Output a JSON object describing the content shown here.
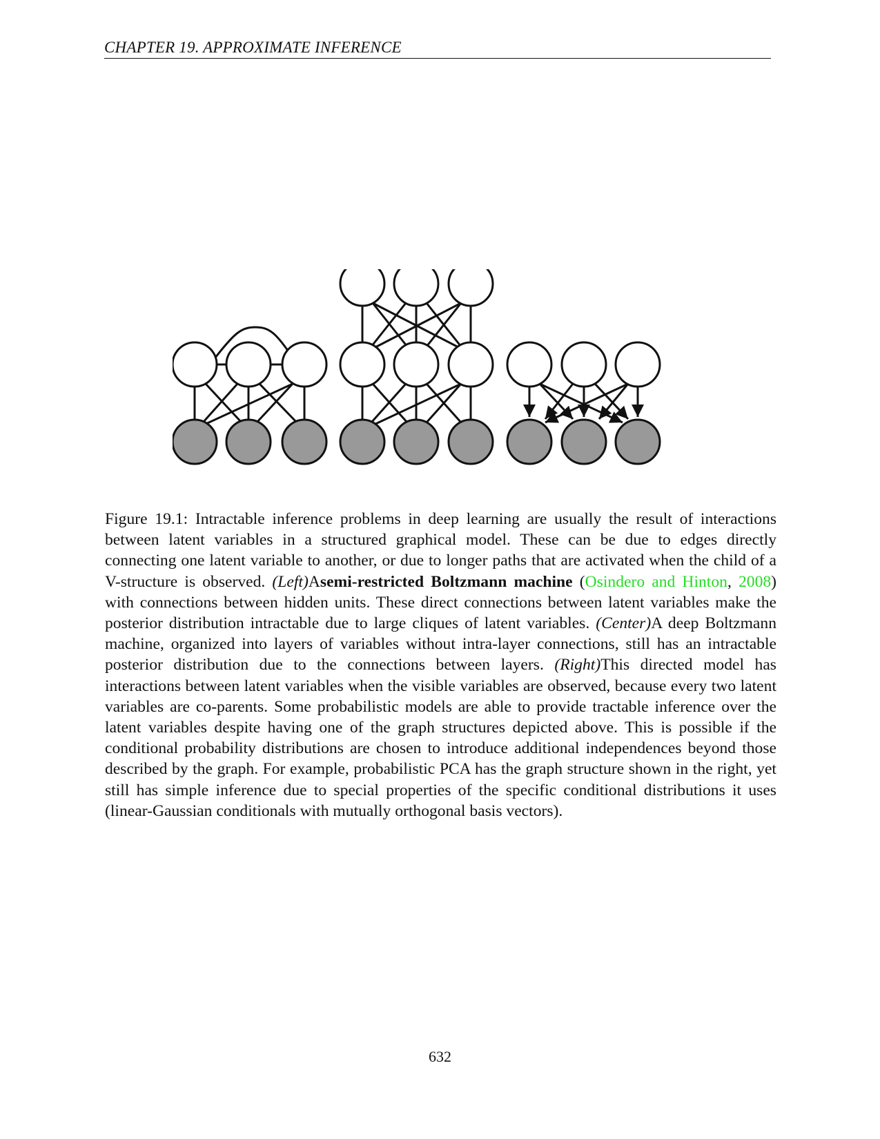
{
  "header": {
    "running_title": "CHAPTER 19.  APPROXIMATE INFERENCE"
  },
  "figure": {
    "panels": [
      "left",
      "center",
      "right"
    ],
    "hidden_color": "#ffffff",
    "visible_color": "#999999",
    "stroke_color": "#111111"
  },
  "caption": {
    "part1": "Figure 19.1: Intractable inference problems in deep learning are usually the result of interactions between latent variables in a structured graphical model.  These can be due to edges directly connecting one latent variable to another, or due to longer paths that are activated when the child of a V-structure is observed. ",
    "left_label": "(Left)",
    "left_article": "A",
    "left_term": "semi-restricted Boltzmann machine",
    "cite_open": " (",
    "cite_authors": "Osindero and Hinton",
    "cite_sep": ", ",
    "cite_year": "2008",
    "cite_close": ")",
    "part2": " with connections between hidden units. These direct connections between latent variables make the posterior distribution intractable due to large cliques of latent variables. ",
    "center_label": "(Center)",
    "part3": "A deep Boltzmann machine, organized into layers of variables without intra-layer connections, still has an intractable posterior distribution due to the connections between layers. ",
    "right_label": "(Right)",
    "part4": "This directed model has interactions between latent variables when the visible variables are observed, because every two latent variables are co-parents. Some probabilistic models are able to provide tractable inference over the latent variables despite having one of the graph structures depicted above. This is possible if the conditional probability distributions are chosen to introduce additional independences beyond those described by the graph. For example, probabilistic PCA has the graph structure shown in the right, yet still has simple inference due to special properties of the specific conditional distributions it uses (linear-Gaussian conditionals with mutually orthogonal basis vectors)."
  },
  "page": {
    "number": "632"
  }
}
